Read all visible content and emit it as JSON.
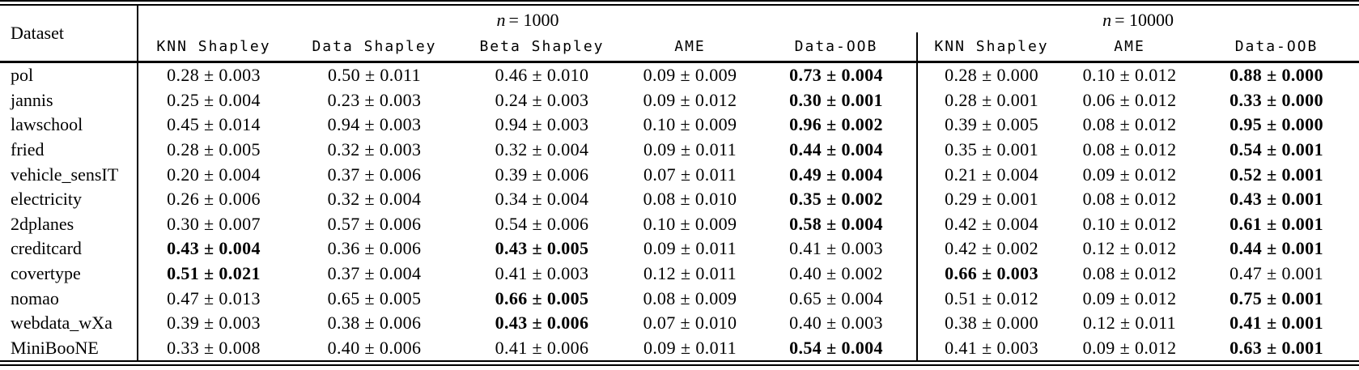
{
  "table": {
    "dataset_column_header": "Dataset",
    "groups": [
      {
        "math_var": "n",
        "label_rest": "= 1000",
        "methods": [
          "KNN Shapley",
          "Data Shapley",
          "Beta Shapley",
          "AME",
          "Data-OOB"
        ]
      },
      {
        "math_var": "n",
        "label_rest": "= 10000",
        "methods": [
          "KNN Shapley",
          "AME",
          "Data-OOB"
        ]
      }
    ],
    "rows": [
      {
        "dataset": "pol",
        "values": [
          "0.28 ± 0.003",
          "0.50 ± 0.011",
          "0.46 ± 0.010",
          "0.09 ± 0.009",
          "0.73 ± 0.004",
          "0.28 ± 0.000",
          "0.10 ± 0.012",
          "0.88 ± 0.000"
        ],
        "bold": [
          4,
          7
        ]
      },
      {
        "dataset": "jannis",
        "values": [
          "0.25 ± 0.004",
          "0.23 ± 0.003",
          "0.24 ± 0.003",
          "0.09 ± 0.012",
          "0.30 ± 0.001",
          "0.28 ± 0.001",
          "0.06 ± 0.012",
          "0.33 ± 0.000"
        ],
        "bold": [
          4,
          7
        ]
      },
      {
        "dataset": "lawschool",
        "values": [
          "0.45 ± 0.014",
          "0.94 ± 0.003",
          "0.94 ± 0.003",
          "0.10 ± 0.009",
          "0.96 ± 0.002",
          "0.39 ± 0.005",
          "0.08 ± 0.012",
          "0.95 ± 0.000"
        ],
        "bold": [
          4,
          7
        ]
      },
      {
        "dataset": "fried",
        "values": [
          "0.28 ± 0.005",
          "0.32 ± 0.003",
          "0.32 ± 0.004",
          "0.09 ± 0.011",
          "0.44 ± 0.004",
          "0.35 ± 0.001",
          "0.08 ± 0.012",
          "0.54 ± 0.001"
        ],
        "bold": [
          4,
          7
        ]
      },
      {
        "dataset": "vehicle_sensIT",
        "values": [
          "0.20 ± 0.004",
          "0.37 ± 0.006",
          "0.39 ± 0.006",
          "0.07 ± 0.011",
          "0.49 ± 0.004",
          "0.21 ± 0.004",
          "0.09 ± 0.012",
          "0.52 ± 0.001"
        ],
        "bold": [
          4,
          7
        ]
      },
      {
        "dataset": "electricity",
        "values": [
          "0.26 ± 0.006",
          "0.32 ± 0.004",
          "0.34 ± 0.004",
          "0.08 ± 0.010",
          "0.35 ± 0.002",
          "0.29 ± 0.001",
          "0.08 ± 0.012",
          "0.43 ± 0.001"
        ],
        "bold": [
          4,
          7
        ]
      },
      {
        "dataset": "2dplanes",
        "values": [
          "0.30 ± 0.007",
          "0.57 ± 0.006",
          "0.54 ± 0.006",
          "0.10 ± 0.009",
          "0.58 ± 0.004",
          "0.42 ± 0.004",
          "0.10 ± 0.012",
          "0.61 ± 0.001"
        ],
        "bold": [
          4,
          7
        ]
      },
      {
        "dataset": "creditcard",
        "values": [
          "0.43 ± 0.004",
          "0.36 ± 0.006",
          "0.43 ± 0.005",
          "0.09 ± 0.011",
          "0.41 ± 0.003",
          "0.42 ± 0.002",
          "0.12 ± 0.012",
          "0.44 ± 0.001"
        ],
        "bold": [
          0,
          2,
          7
        ]
      },
      {
        "dataset": "covertype",
        "values": [
          "0.51 ± 0.021",
          "0.37 ± 0.004",
          "0.41 ± 0.003",
          "0.12 ± 0.011",
          "0.40 ± 0.002",
          "0.66 ± 0.003",
          "0.08 ± 0.012",
          "0.47 ± 0.001"
        ],
        "bold": [
          0,
          5
        ]
      },
      {
        "dataset": "nomao",
        "values": [
          "0.47 ± 0.013",
          "0.65 ± 0.005",
          "0.66 ± 0.005",
          "0.08 ± 0.009",
          "0.65 ± 0.004",
          "0.51 ± 0.012",
          "0.09 ± 0.012",
          "0.75 ± 0.001"
        ],
        "bold": [
          2,
          7
        ]
      },
      {
        "dataset": "webdata_wXa",
        "values": [
          "0.39 ± 0.003",
          "0.38 ± 0.006",
          "0.43 ± 0.006",
          "0.07 ± 0.010",
          "0.40 ± 0.003",
          "0.38 ± 0.000",
          "0.12 ± 0.011",
          "0.41 ± 0.001"
        ],
        "bold": [
          2,
          7
        ]
      },
      {
        "dataset": "MiniBooNE",
        "values": [
          "0.33 ± 0.008",
          "0.40 ± 0.006",
          "0.41 ± 0.006",
          "0.09 ± 0.011",
          "0.54 ± 0.004",
          "0.41 ± 0.003",
          "0.09 ± 0.012",
          "0.63 ± 0.001"
        ],
        "bold": [
          4,
          7
        ]
      }
    ]
  }
}
